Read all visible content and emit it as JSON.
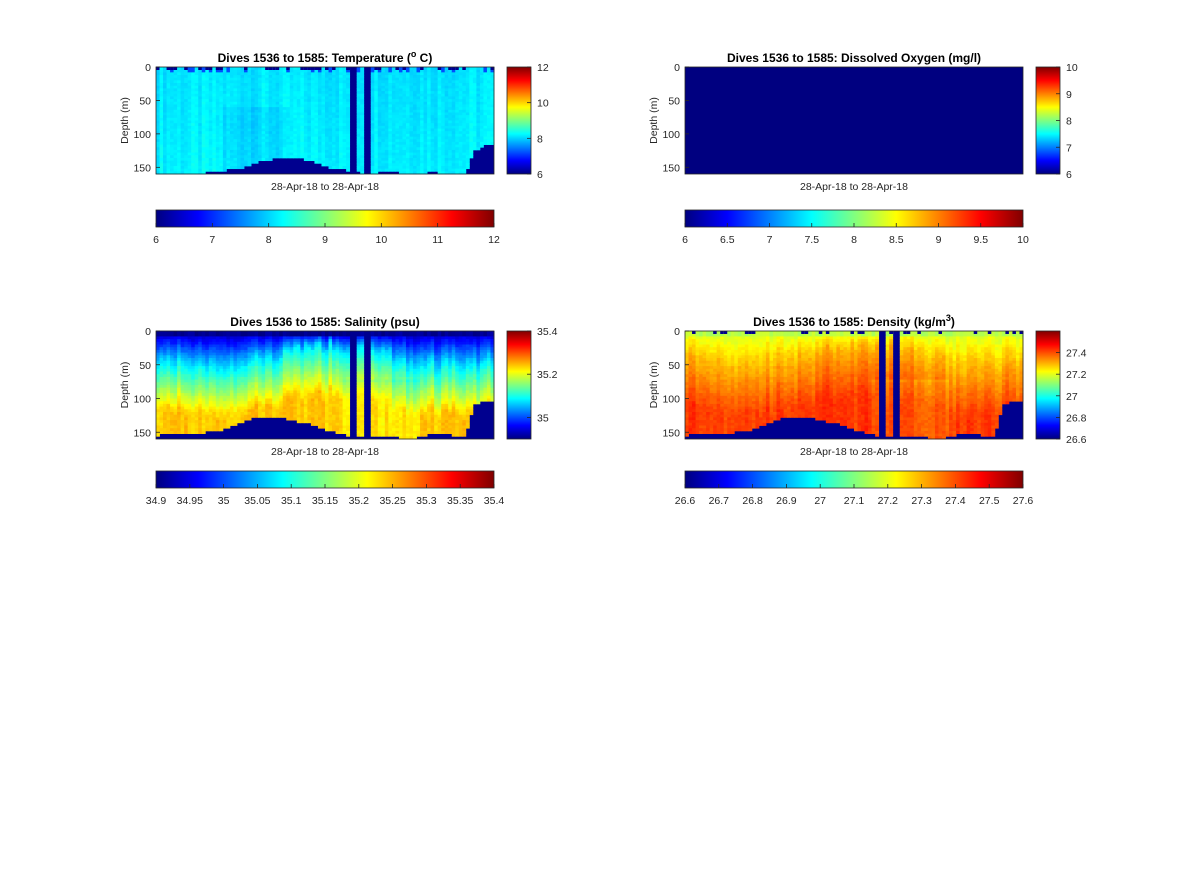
{
  "figure": {
    "background": "#ffffff",
    "colormap": "jet",
    "fill_color_below_data": "#00008f"
  },
  "chart_data": [
    {
      "type": "heatmap",
      "title": "Dives 1536 to 1585: Temperature (° C)",
      "title_parts": {
        "main": "Dives 1536 to 1585: Temperature (",
        "sup": "o",
        "tail": " C)"
      },
      "xlabel": "28-Apr-18 to 28-Apr-18",
      "ylabel": "Depth (m)",
      "y_reversed": true,
      "ylim": [
        0,
        160
      ],
      "yticks": [
        "0",
        "50",
        "100",
        "150"
      ],
      "clim": [
        6,
        12
      ],
      "colorbar_side_ticks": [
        "6",
        "8",
        "10",
        "12"
      ],
      "colorbar_bottom_ticks": [
        "6",
        "7",
        "8",
        "9",
        "10",
        "11",
        "12"
      ],
      "profile": {
        "surface": 8.1,
        "deep": 8.2
      },
      "bottom_depth_by_column": [
        160,
        158,
        158,
        159,
        160,
        158,
        156,
        155,
        152,
        150,
        145,
        140,
        138,
        137,
        135,
        137,
        140,
        146,
        150,
        152,
        155,
        158,
        160,
        158,
        156,
        158,
        160,
        160,
        158,
        157,
        160,
        160,
        160,
        125,
        117,
        115
      ],
      "gap_columns": [
        [
          0.57,
          0.59
        ],
        [
          0.615,
          0.64
        ]
      ],
      "surface_gaps": true
    },
    {
      "type": "heatmap",
      "title": "Dives 1536 to 1585: Dissolved Oxygen (mg/l)",
      "title_parts": {
        "main": "Dives 1536 to 1585: Dissolved Oxygen (mg/l)",
        "sup": "",
        "tail": ""
      },
      "xlabel": "28-Apr-18 to 28-Apr-18",
      "ylabel": "Depth (m)",
      "y_reversed": true,
      "ylim": [
        0,
        160
      ],
      "yticks": [
        "0",
        "50",
        "100",
        "150"
      ],
      "clim": [
        6,
        10
      ],
      "colorbar_side_ticks": [
        "6",
        "7",
        "8",
        "9",
        "10"
      ],
      "colorbar_bottom_ticks": [
        "6",
        "6.5",
        "7",
        "7.5",
        "8",
        "8.5",
        "9",
        "9.5",
        "10"
      ],
      "uniform_value": 6
    },
    {
      "type": "heatmap",
      "title": "Dives 1536 to 1585: Salinity (psu)",
      "title_parts": {
        "main": "Dives 1536 to 1585: Salinity (psu)",
        "sup": "",
        "tail": ""
      },
      "xlabel": "28-Apr-18 to 28-Apr-18",
      "ylabel": "Depth (m)",
      "y_reversed": true,
      "ylim": [
        0,
        160
      ],
      "yticks": [
        "0",
        "50",
        "100",
        "150"
      ],
      "clim": [
        34.9,
        35.4
      ],
      "colorbar_side_ticks": [
        "35",
        "35.2",
        "35.4"
      ],
      "colorbar_bottom_ticks": [
        "34.9",
        "34.95",
        "35",
        "35.05",
        "35.1",
        "35.15",
        "35.2",
        "35.25",
        "35.3",
        "35.35",
        "35.4"
      ],
      "profile": {
        "surface": 34.92,
        "mid": 35.08,
        "deep": 35.24
      },
      "bottom_depth_by_column": [
        155,
        152,
        154,
        150,
        153,
        150,
        148,
        146,
        140,
        135,
        130,
        128,
        126,
        128,
        132,
        135,
        138,
        144,
        148,
        152,
        155,
        156,
        158,
        156,
        154,
        158,
        160,
        158,
        155,
        150,
        152,
        156,
        155,
        108,
        105,
        103
      ],
      "gap_columns": [
        [
          0.57,
          0.59
        ],
        [
          0.615,
          0.64
        ]
      ],
      "surface_gaps": false
    },
    {
      "type": "heatmap",
      "title": "Dives 1536 to 1585: Density (kg/m³)",
      "title_parts": {
        "main": "Dives 1536 to 1585: Density (kg/m",
        "sup": "3",
        "tail": ")"
      },
      "xlabel": "28-Apr-18 to 28-Apr-18",
      "ylabel": "Depth (m)",
      "y_reversed": true,
      "ylim": [
        0,
        160
      ],
      "yticks": [
        "0",
        "50",
        "100",
        "150"
      ],
      "clim": [
        26.6,
        27.6
      ],
      "colorbar_side_ticks": [
        "26.6",
        "26.8",
        "27",
        "27.2",
        "27.4"
      ],
      "colorbar_bottom_ticks": [
        "26.6",
        "26.7",
        "26.8",
        "26.9",
        "27",
        "27.1",
        "27.2",
        "27.3",
        "27.4",
        "27.5",
        "27.6"
      ],
      "profile": {
        "surface": 27.18,
        "mid": 27.33,
        "deep": 27.42
      },
      "bottom_depth_by_column": [
        155,
        152,
        154,
        150,
        153,
        150,
        148,
        146,
        140,
        135,
        130,
        128,
        126,
        128,
        132,
        135,
        138,
        144,
        148,
        152,
        155,
        156,
        158,
        156,
        154,
        158,
        160,
        158,
        155,
        150,
        152,
        156,
        155,
        108,
        105,
        103
      ],
      "gap_columns": [
        [
          0.57,
          0.59
        ],
        [
          0.615,
          0.64
        ]
      ],
      "surface_gaps": true
    }
  ]
}
